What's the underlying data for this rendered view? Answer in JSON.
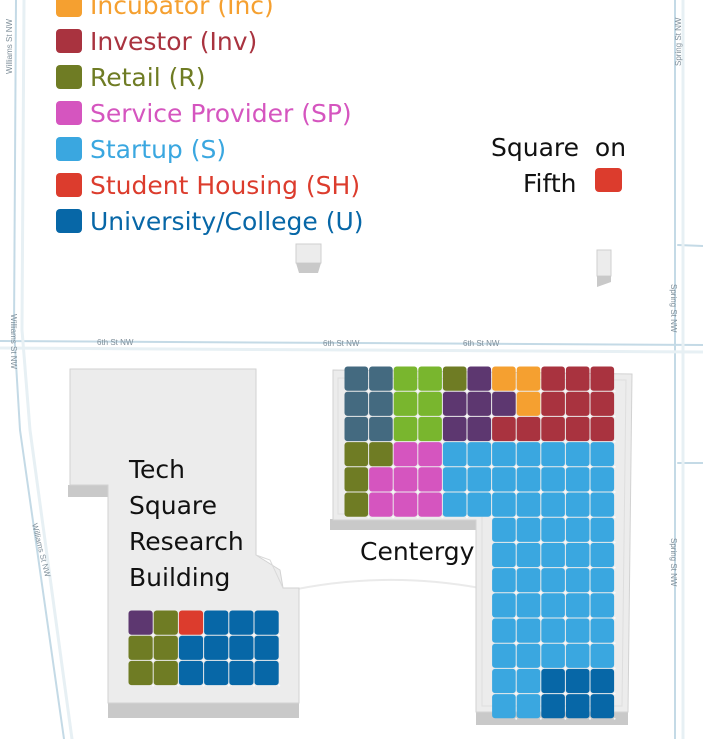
{
  "legend": [
    {
      "key": "incubator",
      "label": "Incubator (Inc)",
      "color": "#f5a030"
    },
    {
      "key": "investor",
      "label": "Investor (Inv)",
      "color": "#a9333f"
    },
    {
      "key": "retail",
      "label": "Retail (R)",
      "color": "#6f7c24"
    },
    {
      "key": "service-provider",
      "label": "Service Provider (SP)",
      "color": "#d555bf"
    },
    {
      "key": "startup",
      "label": "Startup (S)",
      "color": "#3aa7e0"
    },
    {
      "key": "student-housing",
      "label": "Student Housing (SH)",
      "color": "#dc3c2d"
    },
    {
      "key": "university",
      "label": "University/College (U)",
      "color": "#0767a7"
    }
  ],
  "tenant_colors": {
    "slate": "#446a80",
    "green": "#79b62e",
    "purple": "#5d3770"
  },
  "streets": {
    "williams_1": "Williams St NW",
    "williams_2": "Williams St NW",
    "williams_3": "Williams St NW",
    "sixth_1": "6th St NW",
    "sixth_2": "6th St NW",
    "sixth_3": "6th St NW",
    "spring_1": "Spring St NW",
    "spring_2": "Spring St NW",
    "spring_3": "Spring St NW"
  },
  "buildings": {
    "square_on_fifth": {
      "line1": "Square  on",
      "line2": "Fifth",
      "color": "#dc3c2d"
    },
    "tech_square": {
      "line1": "Tech",
      "line2": "Square",
      "line3": "Research",
      "line4": "Building"
    },
    "centergy": {
      "label": "Centergy"
    }
  },
  "centergy_grid": [
    [
      "slate",
      "slate",
      "green",
      "green",
      "retail",
      "purple",
      "incubator",
      "incubator",
      "investor",
      "investor",
      "investor"
    ],
    [
      "slate",
      "slate",
      "green",
      "green",
      "purple",
      "purple",
      "purple",
      "incubator",
      "investor",
      "investor",
      "investor"
    ],
    [
      "slate",
      "slate",
      "green",
      "green",
      "purple",
      "purple",
      "investor",
      "investor",
      "investor",
      "investor",
      "investor"
    ],
    [
      "retail",
      "retail",
      "service-provider",
      "service-provider",
      "startup",
      "startup",
      "startup",
      "startup",
      "startup",
      "startup",
      "startup"
    ],
    [
      "retail",
      "service-provider",
      "service-provider",
      "service-provider",
      "startup",
      "startup",
      "startup",
      "startup",
      "startup",
      "startup",
      "startup"
    ],
    [
      "retail",
      "service-provider",
      "service-provider",
      "service-provider",
      "startup",
      "startup",
      "startup",
      "startup",
      "startup",
      "startup",
      "startup"
    ],
    [
      "",
      "",
      "",
      "",
      "",
      "",
      "startup",
      "startup",
      "startup",
      "startup",
      "startup"
    ],
    [
      "",
      "",
      "",
      "",
      "",
      "",
      "startup",
      "startup",
      "startup",
      "startup",
      "startup"
    ],
    [
      "",
      "",
      "",
      "",
      "",
      "",
      "startup",
      "startup",
      "startup",
      "startup",
      "startup"
    ],
    [
      "",
      "",
      "",
      "",
      "",
      "",
      "startup",
      "startup",
      "startup",
      "startup",
      "startup"
    ],
    [
      "",
      "",
      "",
      "",
      "",
      "",
      "startup",
      "startup",
      "startup",
      "startup",
      "startup"
    ],
    [
      "",
      "",
      "",
      "",
      "",
      "",
      "startup",
      "startup",
      "startup",
      "startup",
      "startup"
    ],
    [
      "",
      "",
      "",
      "",
      "",
      "",
      "startup",
      "startup",
      "university",
      "university",
      "university"
    ],
    [
      "",
      "",
      "",
      "",
      "",
      "",
      "startup",
      "startup",
      "university",
      "university",
      "university"
    ]
  ],
  "tech_square_grid": [
    [
      "purple",
      "retail",
      "student-housing",
      "university",
      "university",
      "university"
    ],
    [
      "retail",
      "retail",
      "university",
      "university",
      "university",
      "university"
    ],
    [
      "retail",
      "retail",
      "university",
      "university",
      "university",
      "university"
    ]
  ]
}
